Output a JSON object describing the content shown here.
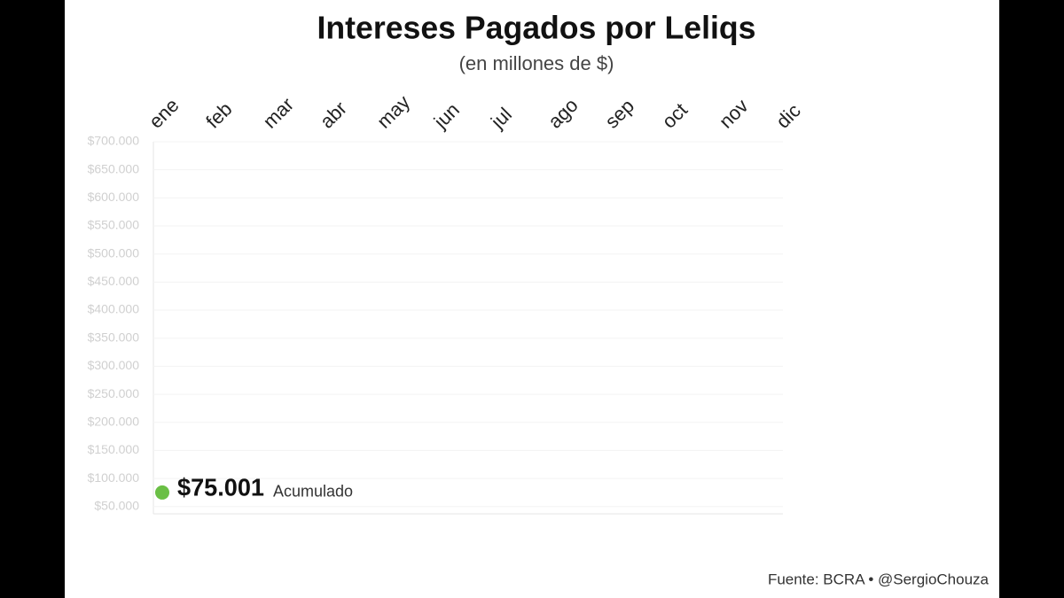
{
  "chart_data": {
    "type": "line",
    "title": "Intereses Pagados por Leliqs",
    "subtitle": "(en millones de $)",
    "source": "Fuente: BCRA • @SergioChouza",
    "categories": [
      "ene",
      "feb",
      "mar",
      "abr",
      "may",
      "jun",
      "jul",
      "ago",
      "sep",
      "oct",
      "nov",
      "dic"
    ],
    "series": [
      {
        "name": "Acumulado",
        "color": "#6abf45",
        "values": [
          75001,
          null,
          null,
          null,
          null,
          null,
          null,
          null,
          null,
          null,
          null,
          null
        ],
        "value_labels": [
          "$75.001",
          null,
          null,
          null,
          null,
          null,
          null,
          null,
          null,
          null,
          null,
          null
        ]
      }
    ],
    "ylim": [
      37000,
      700000
    ],
    "yticks": [
      {
        "value": 50000,
        "label": "$50.000"
      },
      {
        "value": 100000,
        "label": "$100.000"
      },
      {
        "value": 150000,
        "label": "$150.000"
      },
      {
        "value": 200000,
        "label": "$200.000"
      },
      {
        "value": 250000,
        "label": "$250.000"
      },
      {
        "value": 300000,
        "label": "$300.000"
      },
      {
        "value": 350000,
        "label": "$350.000"
      },
      {
        "value": 400000,
        "label": "$400.000"
      },
      {
        "value": 450000,
        "label": "$450.000"
      },
      {
        "value": 500000,
        "label": "$500.000"
      },
      {
        "value": 550000,
        "label": "$550.000"
      },
      {
        "value": 600000,
        "label": "$600.000"
      },
      {
        "value": 650000,
        "label": "$650.000"
      },
      {
        "value": 700000,
        "label": "$700.000"
      }
    ],
    "grid": true
  }
}
